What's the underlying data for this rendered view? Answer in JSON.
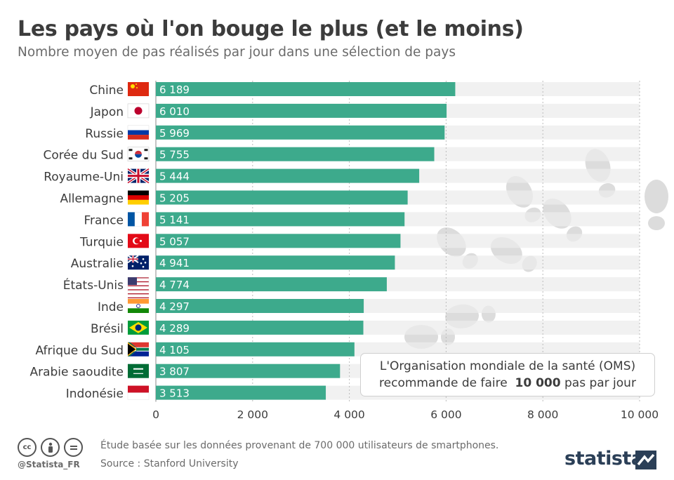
{
  "header": {
    "title": "Les pays où l'on bouge le plus (et le moins)",
    "subtitle": "Nombre moyen de pas réalisés par jour dans une sélection de pays"
  },
  "chart_data": {
    "type": "bar",
    "orientation": "horizontal",
    "categories": [
      "Chine",
      "Japon",
      "Russie",
      "Corée du Sud",
      "Royaume-Uni",
      "Allemagne",
      "France",
      "Turquie",
      "Australie",
      "États-Unis",
      "Inde",
      "Brésil",
      "Afrique du Sud",
      "Arabie saoudite",
      "Indonésie"
    ],
    "values": [
      6189,
      6010,
      5969,
      5755,
      5444,
      5205,
      5141,
      5057,
      4941,
      4774,
      4297,
      4289,
      4105,
      3807,
      3513
    ],
    "value_labels": [
      "6 189",
      "6 010",
      "5 969",
      "5 755",
      "5 444",
      "5 205",
      "5 141",
      "5 057",
      "4 941",
      "4 774",
      "4 297",
      "4 289",
      "4 105",
      "3 807",
      "3 513"
    ],
    "xlim": [
      0,
      10000
    ],
    "ticks": [
      0,
      2000,
      4000,
      6000,
      8000,
      10000
    ],
    "tick_labels": [
      "0",
      "2 000",
      "4 000",
      "6 000",
      "8 000",
      "10 000"
    ],
    "grid": true,
    "bar_color": "#3daa8c",
    "track_color": "#ececec",
    "flags": [
      "china-flag",
      "japan-flag",
      "russia-flag",
      "south-korea-flag",
      "uk-flag",
      "germany-flag",
      "france-flag",
      "turkey-flag",
      "australia-flag",
      "usa-flag",
      "india-flag",
      "brazil-flag",
      "south-africa-flag",
      "saudi-arabia-flag",
      "indonesia-flag"
    ]
  },
  "note": {
    "line1": "L'Organisation mondiale de la santé (OMS)",
    "line2_prefix": "recommande de faire",
    "line2_bold": "10 000",
    "line2_suffix": "pas par jour"
  },
  "footer": {
    "note": "Étude basée sur les données provenant de 700 000 utilisateurs de smartphones.",
    "source": "Source : Stanford University",
    "handle": "@Statista_FR",
    "brand": "statista",
    "license_icons": [
      "cc-icon",
      "by-icon",
      "nd-icon"
    ]
  },
  "colors": {
    "title": "#3c3c3c",
    "footprint": "#dcdcdc",
    "brand": "#2b3f57"
  }
}
